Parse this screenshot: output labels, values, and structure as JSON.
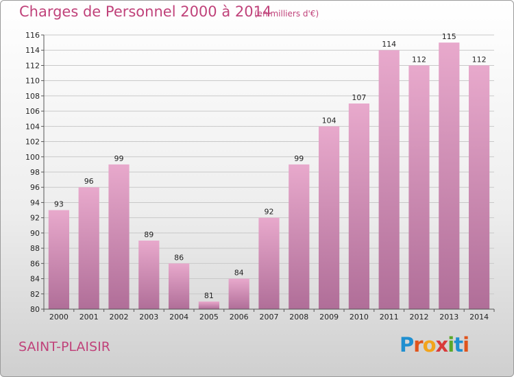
{
  "title": "Charges de Personnel 2000 à 2014",
  "subtitle": "(en milliers d'€)",
  "location": "SAINT-PLAISIR",
  "brand": {
    "letters": [
      "P",
      "r",
      "o",
      "x",
      "i",
      "t",
      "i"
    ],
    "colors": [
      "#1f8fd0",
      "#e0541c",
      "#f2a41b",
      "#d93a3a",
      "#5aa82a",
      "#1f8fd0",
      "#e0541c"
    ]
  },
  "colors": {
    "bar_top": "#e8a9cc",
    "bar_bottom": "#b06e98",
    "text_accent": "#c0427a"
  },
  "chart_data": {
    "type": "bar",
    "title": "Charges de Personnel 2000 à 2014",
    "subtitle": "(en milliers d'€)",
    "categories": [
      "2000",
      "2001",
      "2002",
      "2003",
      "2004",
      "2005",
      "2006",
      "2007",
      "2008",
      "2009",
      "2010",
      "2011",
      "2012",
      "2013",
      "2014"
    ],
    "values": [
      93,
      96,
      99,
      89,
      86,
      81,
      84,
      92,
      99,
      104,
      107,
      114,
      112,
      115,
      112
    ],
    "ylim": [
      80,
      116
    ],
    "yticks": [
      80,
      82,
      84,
      86,
      88,
      90,
      92,
      94,
      96,
      98,
      100,
      102,
      104,
      106,
      108,
      110,
      112,
      114,
      116
    ],
    "grid": true
  }
}
